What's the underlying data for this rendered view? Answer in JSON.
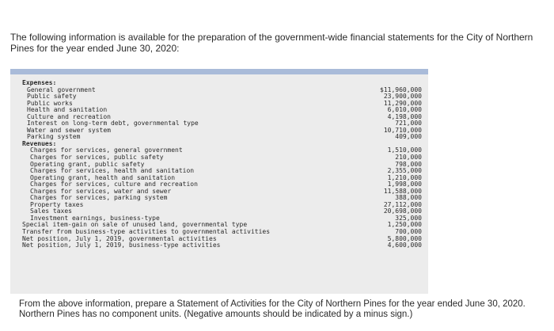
{
  "intro": "The following information is available for the preparation of the government-wide financial statements for the City of Northern Pines for the year ended June 30, 2020:",
  "table": {
    "expenses_header": "Expenses:",
    "expenses": [
      {
        "label": "General government",
        "amount": "$11,960,000"
      },
      {
        "label": "Public safety",
        "amount": "23,900,000"
      },
      {
        "label": "Public works",
        "amount": "11,290,000"
      },
      {
        "label": "Health and sanitation",
        "amount": "6,010,000"
      },
      {
        "label": "Culture and recreation",
        "amount": "4,198,000"
      },
      {
        "label": "Interest on long-term debt, governmental type",
        "amount": "721,000"
      },
      {
        "label": "Water and sewer system",
        "amount": "10,710,000"
      },
      {
        "label": "Parking system",
        "amount": "409,000"
      }
    ],
    "revenues_header": "Revenues:",
    "revenues": [
      {
        "label": "Charges for services, general government",
        "amount": "1,510,000"
      },
      {
        "label": "Charges for services, public safety",
        "amount": "210,000"
      },
      {
        "label": "Operating grant, public safety",
        "amount": "798,000"
      },
      {
        "label": "Charges for services, health and sanitation",
        "amount": "2,355,000"
      },
      {
        "label": "Operating grant, health and sanitation",
        "amount": "1,210,000"
      },
      {
        "label": "Charges for services, culture and recreation",
        "amount": "1,998,000"
      },
      {
        "label": "Charges for services, water and sewer",
        "amount": "11,588,000"
      },
      {
        "label": "Charges for services, parking system",
        "amount": "388,000"
      },
      {
        "label": "Property taxes",
        "amount": "27,112,000"
      },
      {
        "label": "Sales taxes",
        "amount": "20,698,000"
      },
      {
        "label": "Investment earnings, business-type",
        "amount": "325,000"
      }
    ],
    "other": [
      {
        "label": "Special item-gain on sale of unused land, governmental type",
        "amount": "1,250,000"
      },
      {
        "label": "Transfer from business-type activities to governmental activities",
        "amount": "700,000"
      },
      {
        "label": "Net position, July 1, 2019, governmental activities",
        "amount": "5,800,000"
      },
      {
        "label": "Net position, July 1, 2019, business-type activities",
        "amount": "4,600,000"
      }
    ]
  },
  "footer": {
    "line1": "From the above information, prepare a Statement of Activities for the City of Northern Pines for the year ended June 30, 2020.",
    "line2": "Northern Pines has no component units. (Negative amounts should be indicated by a minus sign.)"
  }
}
